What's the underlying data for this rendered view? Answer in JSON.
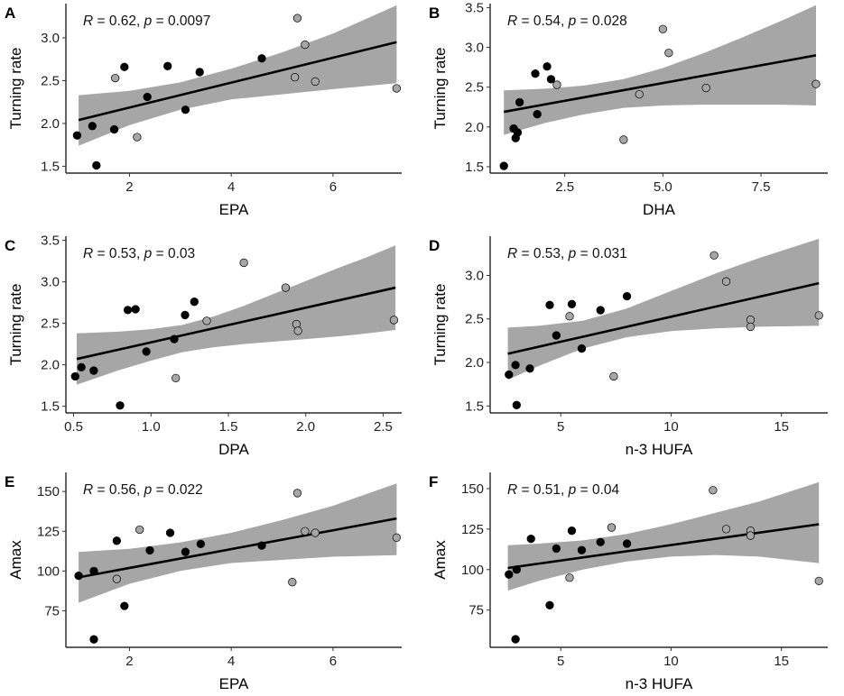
{
  "figure_colors": {
    "ci_band": "#a6a6a6",
    "fit_line": "#000000",
    "filled_point": "#000000",
    "open_point": "#a6a6a6",
    "point_stroke": "#000000"
  },
  "chart_data": [
    {
      "panel": "A",
      "type": "scatter",
      "xlabel": "EPA",
      "ylabel": "Turning rate",
      "xlim": [
        0.75,
        7.35
      ],
      "ylim": [
        1.42,
        3.4
      ],
      "xticks": [
        2,
        4,
        6
      ],
      "yticks": [
        1.5,
        2.0,
        2.5,
        3.0
      ],
      "ytick_labels": [
        "1.5",
        "2.0",
        "2.5",
        "3.0"
      ],
      "stat": {
        "r_symbol": "R",
        "r_text": " = 0.62, ",
        "p_symbol": "p",
        "p_text": " = 0.0097"
      },
      "fit": {
        "x0": 1.0,
        "y0": 2.04,
        "x1": 7.25,
        "y1": 2.95
      },
      "ci": {
        "upper": [
          [
            1.0,
            2.33
          ],
          [
            2.0,
            2.38
          ],
          [
            3.0,
            2.48
          ],
          [
            4.0,
            2.64
          ],
          [
            5.0,
            2.83
          ],
          [
            6.0,
            3.05
          ],
          [
            7.25,
            3.38
          ]
        ],
        "lower": [
          [
            1.0,
            1.74
          ],
          [
            2.0,
            1.98
          ],
          [
            3.0,
            2.16
          ],
          [
            4.0,
            2.28
          ],
          [
            5.0,
            2.34
          ],
          [
            6.0,
            2.4
          ],
          [
            7.25,
            2.47
          ]
        ]
      },
      "points": [
        {
          "x": 0.97,
          "y": 1.86,
          "group": "filled"
        },
        {
          "x": 1.27,
          "y": 1.97,
          "group": "filled"
        },
        {
          "x": 1.35,
          "y": 1.51,
          "group": "filled"
        },
        {
          "x": 1.7,
          "y": 1.93,
          "group": "filled"
        },
        {
          "x": 1.72,
          "y": 2.53,
          "group": "open"
        },
        {
          "x": 1.9,
          "y": 2.66,
          "group": "filled"
        },
        {
          "x": 2.15,
          "y": 1.84,
          "group": "open"
        },
        {
          "x": 2.35,
          "y": 2.31,
          "group": "filled"
        },
        {
          "x": 2.75,
          "y": 2.67,
          "group": "filled"
        },
        {
          "x": 3.1,
          "y": 2.16,
          "group": "filled"
        },
        {
          "x": 3.38,
          "y": 2.6,
          "group": "filled"
        },
        {
          "x": 4.6,
          "y": 2.76,
          "group": "filled"
        },
        {
          "x": 5.25,
          "y": 2.54,
          "group": "open"
        },
        {
          "x": 5.3,
          "y": 3.23,
          "group": "open"
        },
        {
          "x": 5.45,
          "y": 2.92,
          "group": "open"
        },
        {
          "x": 5.65,
          "y": 2.49,
          "group": "open"
        },
        {
          "x": 7.25,
          "y": 2.41,
          "group": "open"
        }
      ]
    },
    {
      "panel": "B",
      "type": "scatter",
      "xlabel": "DHA",
      "ylabel": "Turning rate",
      "xlim": [
        0.6,
        9.2
      ],
      "ylim": [
        1.42,
        3.55
      ],
      "xticks": [
        2.5,
        5.0,
        7.5
      ],
      "yticks": [
        1.5,
        2.0,
        2.5,
        3.0,
        3.5
      ],
      "xtick_labels": [
        "2.5",
        "5.0",
        "7.5"
      ],
      "ytick_labels": [
        "1.5",
        "2.0",
        "2.5",
        "3.0",
        "3.5"
      ],
      "stat": {
        "r_symbol": "R",
        "r_text": " = 0.54, ",
        "p_symbol": "p",
        "p_text": " = 0.028"
      },
      "fit": {
        "x0": 0.95,
        "y0": 2.19,
        "x1": 8.9,
        "y1": 2.9
      },
      "ci": {
        "upper": [
          [
            0.95,
            2.46
          ],
          [
            2.0,
            2.48
          ],
          [
            3.0,
            2.52
          ],
          [
            4.0,
            2.6
          ],
          [
            5.0,
            2.74
          ],
          [
            6.0,
            2.92
          ],
          [
            7.0,
            3.12
          ],
          [
            8.0,
            3.33
          ],
          [
            8.9,
            3.53
          ]
        ],
        "lower": [
          [
            0.95,
            1.9
          ],
          [
            2.0,
            2.05
          ],
          [
            3.0,
            2.16
          ],
          [
            4.0,
            2.24
          ],
          [
            5.0,
            2.27
          ],
          [
            6.0,
            2.28
          ],
          [
            7.0,
            2.28
          ],
          [
            8.0,
            2.28
          ],
          [
            8.9,
            2.27
          ]
        ]
      },
      "points": [
        {
          "x": 0.95,
          "y": 1.51,
          "group": "filled"
        },
        {
          "x": 1.2,
          "y": 1.98,
          "group": "filled"
        },
        {
          "x": 1.25,
          "y": 1.86,
          "group": "filled"
        },
        {
          "x": 1.3,
          "y": 1.93,
          "group": "filled"
        },
        {
          "x": 1.35,
          "y": 2.31,
          "group": "filled"
        },
        {
          "x": 1.75,
          "y": 2.67,
          "group": "filled"
        },
        {
          "x": 1.8,
          "y": 2.16,
          "group": "filled"
        },
        {
          "x": 2.05,
          "y": 2.76,
          "group": "filled"
        },
        {
          "x": 2.15,
          "y": 2.6,
          "group": "filled"
        },
        {
          "x": 2.3,
          "y": 2.53,
          "group": "open"
        },
        {
          "x": 4.0,
          "y": 1.84,
          "group": "open"
        },
        {
          "x": 4.4,
          "y": 2.41,
          "group": "open"
        },
        {
          "x": 5.0,
          "y": 3.23,
          "group": "open"
        },
        {
          "x": 5.15,
          "y": 2.93,
          "group": "open"
        },
        {
          "x": 6.1,
          "y": 2.49,
          "group": "open"
        },
        {
          "x": 8.9,
          "y": 2.54,
          "group": "open"
        }
      ]
    },
    {
      "panel": "C",
      "type": "scatter",
      "xlabel": "DPA",
      "ylabel": "Turning rate",
      "xlim": [
        0.45,
        2.62
      ],
      "ylim": [
        1.42,
        3.55
      ],
      "xticks": [
        0.5,
        1.0,
        1.5,
        2.0,
        2.5
      ],
      "yticks": [
        1.5,
        2.0,
        2.5,
        3.0,
        3.5
      ],
      "xtick_labels": [
        "0.5",
        "1.0",
        "1.5",
        "2.0",
        "2.5"
      ],
      "ytick_labels": [
        "1.5",
        "2.0",
        "2.5",
        "3.0",
        "3.5"
      ],
      "stat": {
        "r_symbol": "R",
        "r_text": " = 0.53, ",
        "p_symbol": "p",
        "p_text": " = 0.03"
      },
      "fit": {
        "x0": 0.52,
        "y0": 2.07,
        "x1": 2.58,
        "y1": 2.93
      },
      "ci": {
        "upper": [
          [
            0.52,
            2.38
          ],
          [
            0.8,
            2.4
          ],
          [
            1.0,
            2.43
          ],
          [
            1.2,
            2.48
          ],
          [
            1.4,
            2.58
          ],
          [
            1.6,
            2.71
          ],
          [
            1.8,
            2.86
          ],
          [
            2.0,
            3.01
          ],
          [
            2.2,
            3.16
          ],
          [
            2.4,
            3.3
          ],
          [
            2.58,
            3.44
          ]
        ],
        "lower": [
          [
            0.52,
            1.76
          ],
          [
            0.8,
            1.94
          ],
          [
            1.0,
            2.05
          ],
          [
            1.2,
            2.15
          ],
          [
            1.4,
            2.21
          ],
          [
            1.6,
            2.25
          ],
          [
            1.8,
            2.28
          ],
          [
            2.0,
            2.31
          ],
          [
            2.2,
            2.34
          ],
          [
            2.4,
            2.38
          ],
          [
            2.58,
            2.42
          ]
        ]
      },
      "points": [
        {
          "x": 0.51,
          "y": 1.86,
          "group": "filled"
        },
        {
          "x": 0.55,
          "y": 1.97,
          "group": "filled"
        },
        {
          "x": 0.63,
          "y": 1.93,
          "group": "filled"
        },
        {
          "x": 0.8,
          "y": 1.51,
          "group": "filled"
        },
        {
          "x": 0.85,
          "y": 2.66,
          "group": "filled"
        },
        {
          "x": 0.9,
          "y": 2.67,
          "group": "filled"
        },
        {
          "x": 0.97,
          "y": 2.16,
          "group": "filled"
        },
        {
          "x": 1.15,
          "y": 2.31,
          "group": "filled"
        },
        {
          "x": 1.16,
          "y": 1.84,
          "group": "open"
        },
        {
          "x": 1.22,
          "y": 2.6,
          "group": "filled"
        },
        {
          "x": 1.28,
          "y": 2.76,
          "group": "filled"
        },
        {
          "x": 1.36,
          "y": 2.53,
          "group": "open"
        },
        {
          "x": 1.6,
          "y": 3.23,
          "group": "open"
        },
        {
          "x": 1.87,
          "y": 2.93,
          "group": "open"
        },
        {
          "x": 1.94,
          "y": 2.49,
          "group": "open"
        },
        {
          "x": 1.95,
          "y": 2.41,
          "group": "open"
        },
        {
          "x": 2.57,
          "y": 2.54,
          "group": "open"
        }
      ]
    },
    {
      "panel": "D",
      "type": "scatter",
      "xlabel": "n-3 HUFA",
      "ylabel": "Turning rate",
      "xlim": [
        1.8,
        17.1
      ],
      "ylim": [
        1.42,
        3.45
      ],
      "xticks": [
        5,
        10,
        15
      ],
      "yticks": [
        1.5,
        2.0,
        2.5,
        3.0
      ],
      "ytick_labels": [
        "1.5",
        "2.0",
        "2.5",
        "3.0"
      ],
      "stat": {
        "r_symbol": "R",
        "r_text": " = 0.53, ",
        "p_symbol": "p",
        "p_text": " = 0.031"
      },
      "fit": {
        "x0": 2.6,
        "y0": 2.1,
        "x1": 16.7,
        "y1": 2.91
      },
      "ci": {
        "upper": [
          [
            2.6,
            2.4
          ],
          [
            4.0,
            2.42
          ],
          [
            6.0,
            2.48
          ],
          [
            8.0,
            2.62
          ],
          [
            10.0,
            2.82
          ],
          [
            12.0,
            3.02
          ],
          [
            14.0,
            3.2
          ],
          [
            16.7,
            3.42
          ]
        ],
        "lower": [
          [
            2.6,
            1.8
          ],
          [
            4.0,
            1.96
          ],
          [
            6.0,
            2.16
          ],
          [
            8.0,
            2.29
          ],
          [
            10.0,
            2.36
          ],
          [
            12.0,
            2.39
          ],
          [
            14.0,
            2.41
          ],
          [
            16.7,
            2.42
          ]
        ]
      },
      "points": [
        {
          "x": 2.65,
          "y": 1.86,
          "group": "filled"
        },
        {
          "x": 2.95,
          "y": 1.97,
          "group": "filled"
        },
        {
          "x": 3.0,
          "y": 1.51,
          "group": "filled"
        },
        {
          "x": 3.6,
          "y": 1.93,
          "group": "filled"
        },
        {
          "x": 4.5,
          "y": 2.66,
          "group": "filled"
        },
        {
          "x": 4.8,
          "y": 2.31,
          "group": "filled"
        },
        {
          "x": 5.4,
          "y": 2.53,
          "group": "open"
        },
        {
          "x": 5.5,
          "y": 2.67,
          "group": "filled"
        },
        {
          "x": 5.95,
          "y": 2.16,
          "group": "filled"
        },
        {
          "x": 6.8,
          "y": 2.6,
          "group": "filled"
        },
        {
          "x": 7.4,
          "y": 1.84,
          "group": "open"
        },
        {
          "x": 8.0,
          "y": 2.76,
          "group": "filled"
        },
        {
          "x": 11.95,
          "y": 3.23,
          "group": "open"
        },
        {
          "x": 12.5,
          "y": 2.93,
          "group": "open"
        },
        {
          "x": 13.6,
          "y": 2.49,
          "group": "open"
        },
        {
          "x": 13.6,
          "y": 2.41,
          "group": "open"
        },
        {
          "x": 16.7,
          "y": 2.54,
          "group": "open"
        }
      ]
    },
    {
      "panel": "E",
      "type": "scatter",
      "xlabel": "EPA",
      "ylabel": "Amax",
      "xlim": [
        0.75,
        7.35
      ],
      "ylim": [
        52,
        162
      ],
      "xticks": [
        2,
        4,
        6
      ],
      "yticks": [
        75,
        100,
        125,
        150
      ],
      "stat": {
        "r_symbol": "R",
        "r_text": " = 0.56, ",
        "p_symbol": "p",
        "p_text": " = 0.022"
      },
      "fit": {
        "x0": 1.0,
        "y0": 96,
        "x1": 7.25,
        "y1": 133
      },
      "ci": {
        "upper": [
          [
            1.0,
            112
          ],
          [
            2.0,
            114
          ],
          [
            3.0,
            118
          ],
          [
            4.0,
            124
          ],
          [
            5.0,
            132
          ],
          [
            6.0,
            141
          ],
          [
            7.25,
            155
          ]
        ],
        "lower": [
          [
            1.0,
            80
          ],
          [
            2.0,
            92
          ],
          [
            3.0,
            100
          ],
          [
            4.0,
            105
          ],
          [
            5.0,
            107
          ],
          [
            6.0,
            109
          ],
          [
            7.25,
            110
          ]
        ]
      },
      "points": [
        {
          "x": 1.0,
          "y": 97,
          "group": "filled"
        },
        {
          "x": 1.3,
          "y": 100,
          "group": "filled"
        },
        {
          "x": 1.3,
          "y": 57,
          "group": "filled"
        },
        {
          "x": 1.75,
          "y": 119,
          "group": "filled"
        },
        {
          "x": 1.75,
          "y": 95,
          "group": "open"
        },
        {
          "x": 1.9,
          "y": 78,
          "group": "filled"
        },
        {
          "x": 2.2,
          "y": 126,
          "group": "open"
        },
        {
          "x": 2.4,
          "y": 113,
          "group": "filled"
        },
        {
          "x": 2.8,
          "y": 124,
          "group": "filled"
        },
        {
          "x": 3.1,
          "y": 112,
          "group": "filled"
        },
        {
          "x": 3.4,
          "y": 117,
          "group": "filled"
        },
        {
          "x": 4.6,
          "y": 116,
          "group": "filled"
        },
        {
          "x": 5.2,
          "y": 93,
          "group": "open"
        },
        {
          "x": 5.3,
          "y": 149,
          "group": "open"
        },
        {
          "x": 5.45,
          "y": 125,
          "group": "open"
        },
        {
          "x": 5.65,
          "y": 124,
          "group": "open"
        },
        {
          "x": 7.25,
          "y": 121,
          "group": "open"
        }
      ]
    },
    {
      "panel": "F",
      "type": "scatter",
      "xlabel": "n-3 HUFA",
      "ylabel": "Amax",
      "xlim": [
        1.8,
        17.1
      ],
      "ylim": [
        52,
        160
      ],
      "xticks": [
        5,
        10,
        15
      ],
      "yticks": [
        75,
        100,
        125,
        150
      ],
      "stat": {
        "r_symbol": "R",
        "r_text": " = 0.51, ",
        "p_symbol": "p",
        "p_text": " = 0.04"
      },
      "fit": {
        "x0": 2.6,
        "y0": 101,
        "x1": 16.7,
        "y1": 128
      },
      "ci": {
        "upper": [
          [
            2.6,
            115
          ],
          [
            4.0,
            116
          ],
          [
            6.0,
            118
          ],
          [
            8.0,
            122
          ],
          [
            10.0,
            128
          ],
          [
            12.0,
            135
          ],
          [
            14.0,
            142
          ],
          [
            16.7,
            154
          ]
        ],
        "lower": [
          [
            2.6,
            87
          ],
          [
            4.0,
            93
          ],
          [
            6.0,
            100
          ],
          [
            8.0,
            105
          ],
          [
            10.0,
            108
          ],
          [
            12.0,
            109
          ],
          [
            14.0,
            108
          ],
          [
            16.7,
            104
          ]
        ]
      },
      "points": [
        {
          "x": 2.65,
          "y": 97,
          "group": "filled"
        },
        {
          "x": 2.95,
          "y": 57,
          "group": "filled"
        },
        {
          "x": 3.0,
          "y": 100,
          "group": "filled"
        },
        {
          "x": 3.65,
          "y": 119,
          "group": "filled"
        },
        {
          "x": 4.5,
          "y": 78,
          "group": "filled"
        },
        {
          "x": 4.8,
          "y": 113,
          "group": "filled"
        },
        {
          "x": 5.4,
          "y": 95,
          "group": "open"
        },
        {
          "x": 5.5,
          "y": 124,
          "group": "filled"
        },
        {
          "x": 5.95,
          "y": 112,
          "group": "filled"
        },
        {
          "x": 6.8,
          "y": 117,
          "group": "filled"
        },
        {
          "x": 7.3,
          "y": 126,
          "group": "open"
        },
        {
          "x": 8.0,
          "y": 116,
          "group": "filled"
        },
        {
          "x": 11.9,
          "y": 149,
          "group": "open"
        },
        {
          "x": 12.5,
          "y": 125,
          "group": "open"
        },
        {
          "x": 13.6,
          "y": 124,
          "group": "open"
        },
        {
          "x": 13.6,
          "y": 121,
          "group": "open"
        },
        {
          "x": 16.7,
          "y": 93,
          "group": "open"
        }
      ]
    }
  ]
}
